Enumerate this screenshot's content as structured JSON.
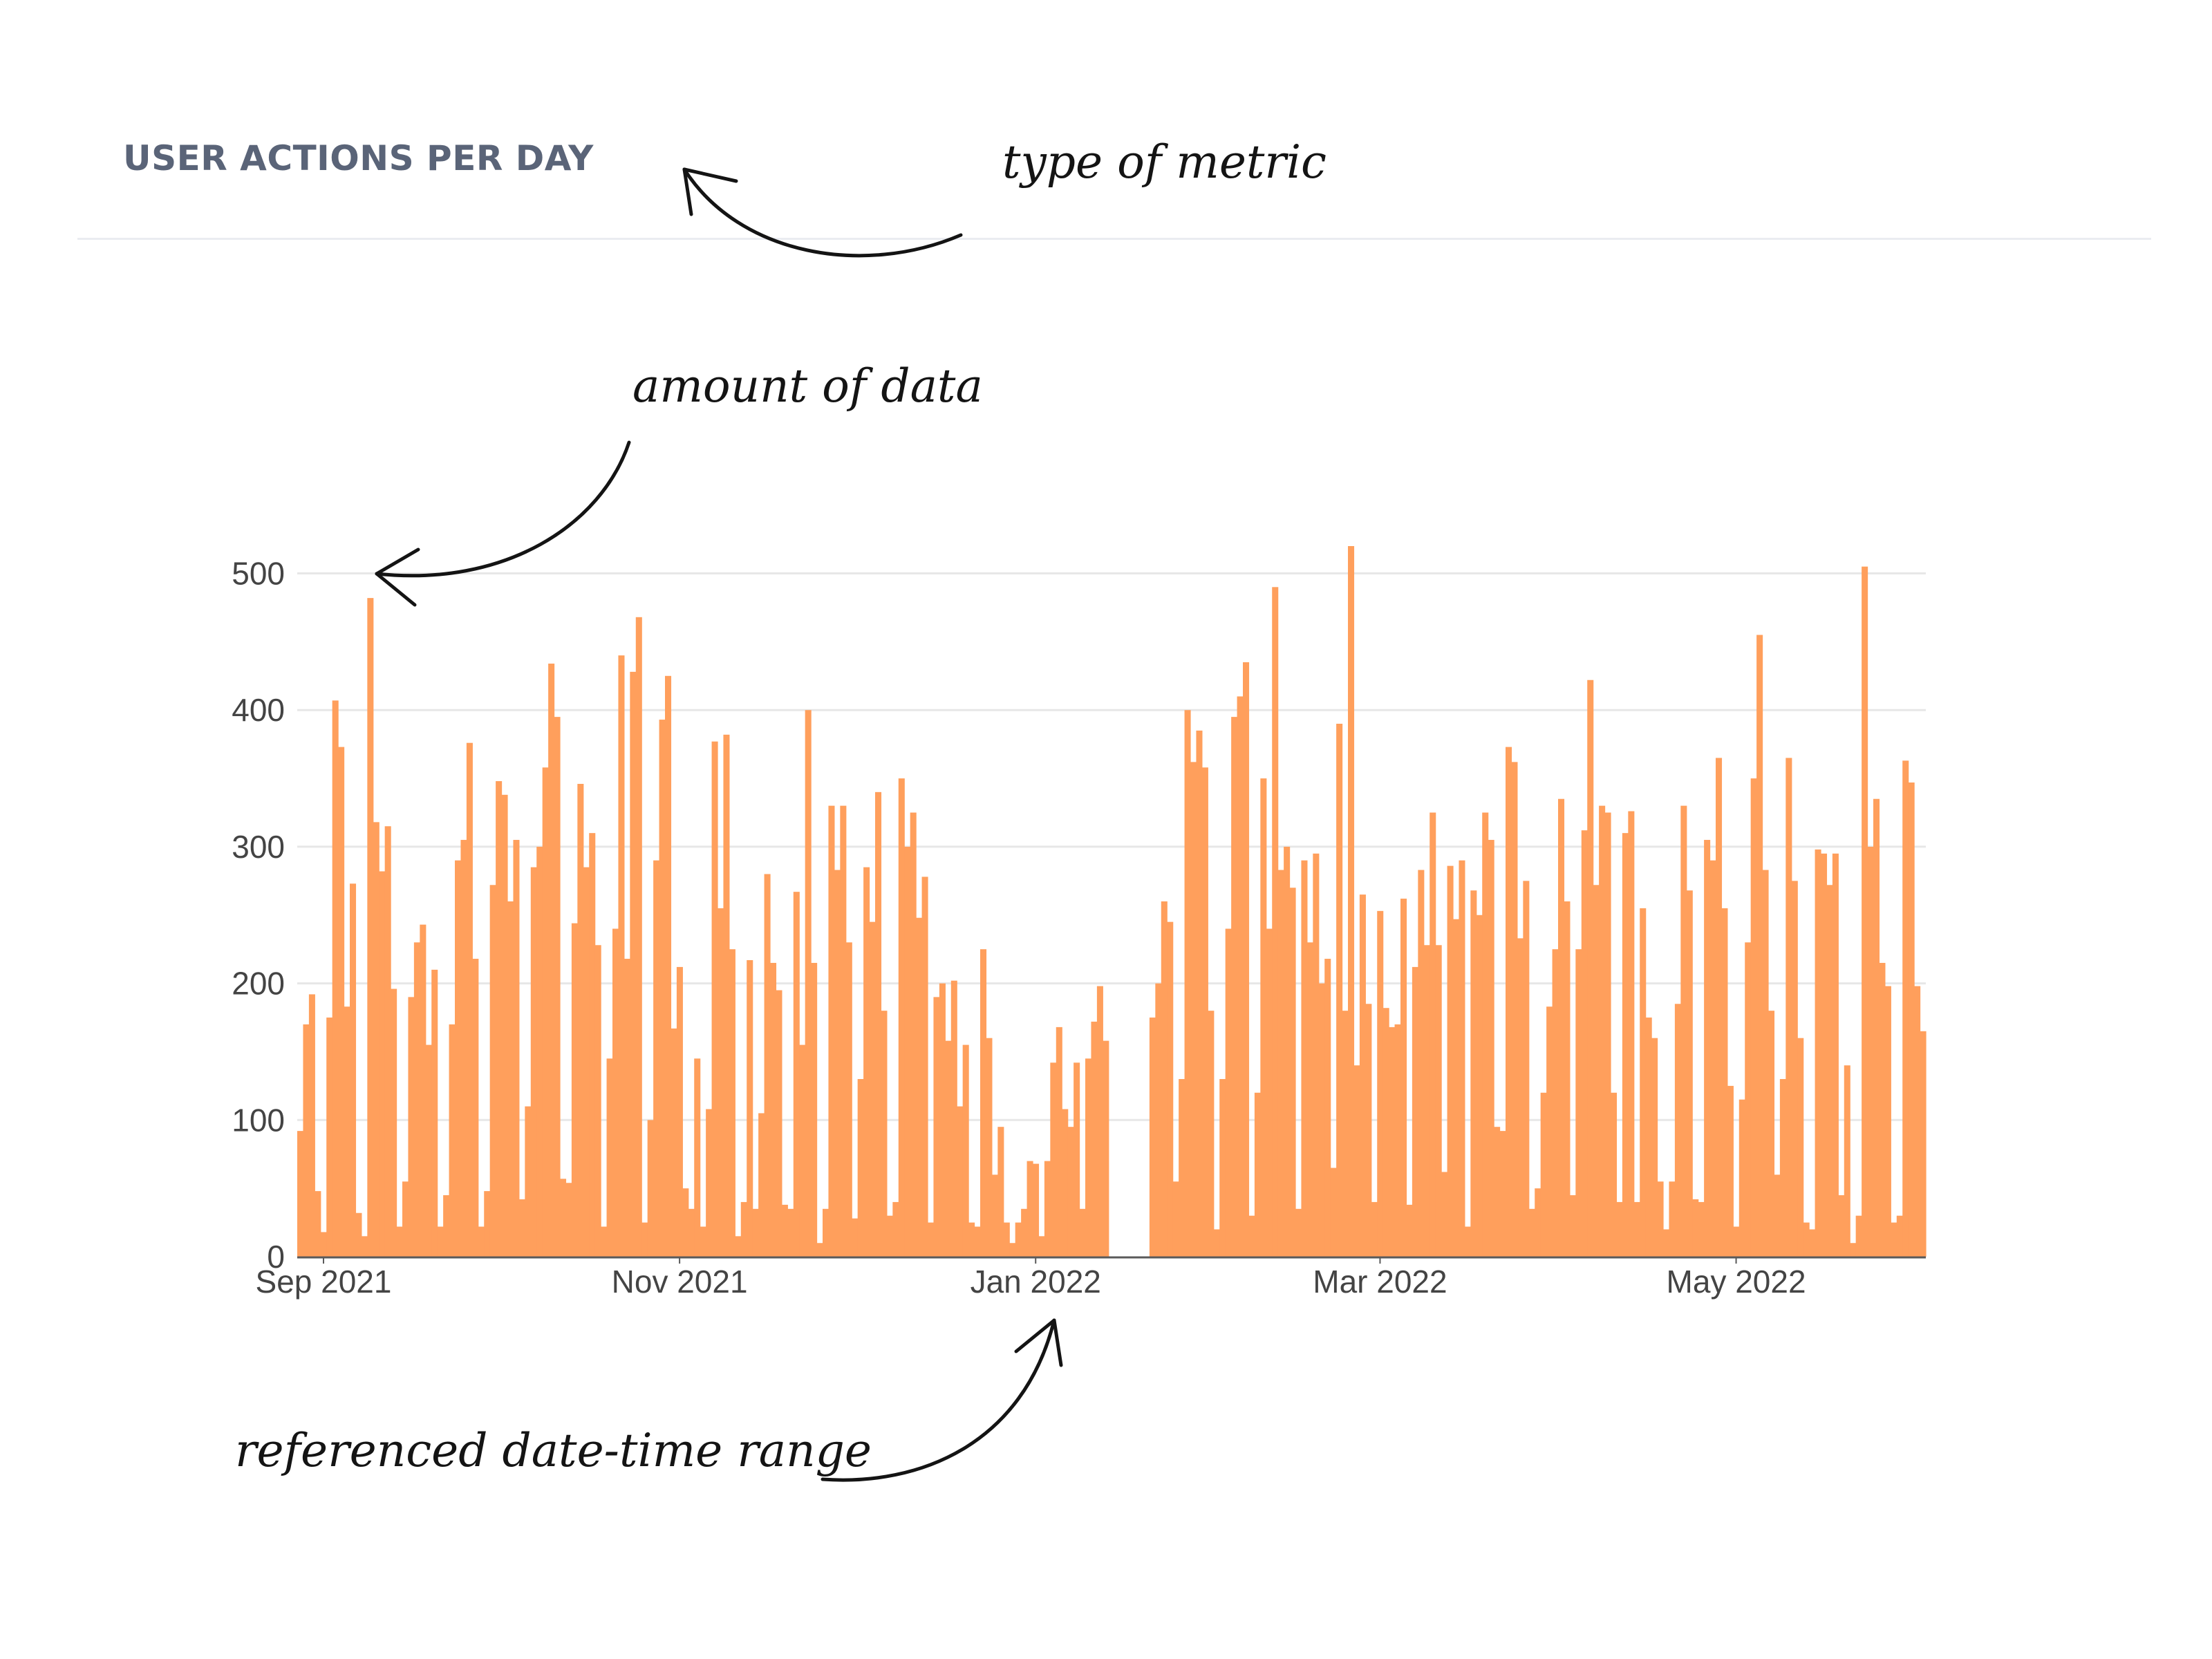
{
  "panel": {
    "title": "USER ACTIONS PER DAY"
  },
  "annotations": {
    "metric_note": "type of metric",
    "amount_note": "amount of data",
    "range_note": "referenced date-time range"
  },
  "colors": {
    "bar": "#ff9f5c",
    "grid": "#e7e7e7",
    "axis": "#5a5a5a",
    "title": "#5a6478"
  },
  "chart_data": {
    "type": "bar",
    "x_start": "2021-08-28",
    "ylim": [
      0,
      520
    ],
    "y_ticks": [
      0,
      100,
      200,
      300,
      400,
      500
    ],
    "x_ticks": [
      {
        "date": "2021-09-01",
        "label": "Sep 2021"
      },
      {
        "date": "2021-11-01",
        "label": "Nov 2021"
      },
      {
        "date": "2022-01-01",
        "label": "Jan 2022"
      },
      {
        "date": "2022-03-01",
        "label": "Mar 2022"
      },
      {
        "date": "2022-05-01",
        "label": "May 2022"
      }
    ],
    "grid": true,
    "values": [
      92,
      170,
      192,
      48,
      18,
      175,
      407,
      373,
      183,
      273,
      32,
      15,
      482,
      318,
      282,
      315,
      196,
      22,
      55,
      190,
      230,
      243,
      155,
      210,
      22,
      45,
      170,
      290,
      305,
      376,
      218,
      22,
      48,
      272,
      348,
      338,
      260,
      305,
      42,
      110,
      285,
      300,
      358,
      434,
      395,
      57,
      54,
      244,
      346,
      285,
      310,
      228,
      22,
      145,
      240,
      440,
      218,
      428,
      468,
      25,
      100,
      290,
      393,
      425,
      167,
      212,
      50,
      35,
      145,
      22,
      108,
      377,
      255,
      382,
      225,
      15,
      40,
      217,
      35,
      105,
      280,
      215,
      195,
      38,
      35,
      267,
      155,
      400,
      215,
      10,
      35,
      330,
      283,
      330,
      230,
      28,
      130,
      285,
      245,
      340,
      180,
      30,
      40,
      350,
      300,
      325,
      248,
      278,
      25,
      190,
      200,
      158,
      202,
      110,
      155,
      25,
      22,
      225,
      160,
      60,
      95,
      25,
      10,
      25,
      35,
      70,
      68,
      15,
      70,
      142,
      168,
      108,
      95,
      142,
      35,
      145,
      172,
      198,
      158,
      0,
      0,
      0,
      0,
      0,
      0,
      0,
      175,
      200,
      260,
      245,
      55,
      130,
      400,
      362,
      385,
      358,
      180,
      20,
      130,
      240,
      395,
      410,
      435,
      30,
      120,
      350,
      240,
      490,
      283,
      300,
      270,
      35,
      290,
      230,
      295,
      200,
      218,
      65,
      390,
      180,
      520,
      140,
      265,
      185,
      40,
      253,
      182,
      168,
      170,
      262,
      38,
      212,
      283,
      228,
      325,
      228,
      62,
      286,
      247,
      290,
      22,
      268,
      250,
      325,
      305,
      95,
      92,
      373,
      362,
      233,
      275,
      35,
      50,
      120,
      183,
      225,
      335,
      260,
      45,
      225,
      312,
      422,
      272,
      330,
      325,
      120,
      40,
      310,
      326,
      40,
      255,
      175,
      160,
      55,
      20,
      55,
      185,
      330,
      268,
      42,
      40,
      305,
      290,
      365,
      255,
      125,
      22,
      115,
      230,
      350,
      455,
      283,
      180,
      60,
      130,
      365,
      275,
      160,
      25,
      20,
      298,
      295,
      272,
      295,
      45,
      140,
      10,
      30,
      505,
      300,
      335,
      215,
      198,
      25,
      30,
      363,
      347,
      198,
      165
    ]
  }
}
